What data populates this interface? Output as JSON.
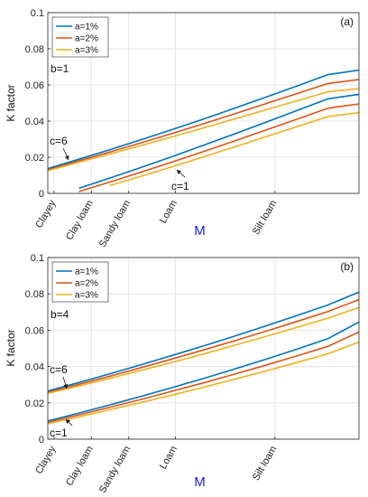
{
  "chart_data": [
    {
      "type": "line",
      "panel_label": "(a)",
      "ylabel": "K factor",
      "xlabel": "M",
      "ylim": [
        0,
        0.1
      ],
      "yticks": [
        "0",
        "0.02",
        "0.04",
        "0.06",
        "0.08",
        "0.1"
      ],
      "xlim": [
        0,
        1
      ],
      "x_categories": [
        {
          "label": "Clayey",
          "x": 0.02
        },
        {
          "label": "Clay loam",
          "x": 0.14
        },
        {
          "label": "Sandy loam",
          "x": 0.26
        },
        {
          "label": "Loam",
          "x": 0.41
        },
        {
          "label": "Silt loam",
          "x": 0.73
        }
      ],
      "grid": true,
      "legend": {
        "placement": "top-left",
        "entries": [
          "a=1%",
          "a=2%",
          "a=3%"
        ]
      },
      "annotations": [
        {
          "text": "b=1"
        },
        {
          "text": "c=6",
          "x": 0.02,
          "y": 0.013
        },
        {
          "text": "c=1",
          "x": 0.39,
          "y": 0.012
        }
      ],
      "colors": [
        "#0072BD",
        "#D95319",
        "#EDB120"
      ],
      "x": [
        0,
        0.1,
        0.2,
        0.3,
        0.4,
        0.5,
        0.6,
        0.7,
        0.8,
        0.9,
        1
      ],
      "series": [
        {
          "name": "a=1%",
          "group": "c=6",
          "values": [
            0.0137,
            0.0189,
            0.0242,
            0.0297,
            0.0353,
            0.0411,
            0.0471,
            0.0532,
            0.0594,
            0.0657,
            0.0682
          ]
        },
        {
          "name": "a=2%",
          "group": "c=6",
          "values": [
            0.0131,
            0.018,
            0.0229,
            0.028,
            0.0332,
            0.0385,
            0.044,
            0.0496,
            0.0552,
            0.0608,
            0.063
          ]
        },
        {
          "name": "a=3%",
          "group": "c=6",
          "values": [
            0.0126,
            0.0172,
            0.0218,
            0.0265,
            0.0313,
            0.0362,
            0.0412,
            0.0462,
            0.0512,
            0.0562,
            0.058
          ]
        },
        {
          "name": "a=1%",
          "group": "c=1",
          "values": [
            null,
            0.0028,
            0.0085,
            0.0144,
            0.0204,
            0.0266,
            0.0329,
            0.0393,
            0.0458,
            0.0523,
            0.0548
          ]
        },
        {
          "name": "a=2%",
          "group": "c=1",
          "values": [
            null,
            0.001,
            0.0063,
            0.0118,
            0.0174,
            0.0231,
            0.029,
            0.035,
            0.041,
            0.0471,
            0.0495
          ]
        },
        {
          "name": "a=3%",
          "group": "c=1",
          "values": [
            null,
            null,
            0.0044,
            0.0095,
            0.0148,
            0.0202,
            0.0257,
            0.0313,
            0.0369,
            0.0425,
            0.0447
          ]
        }
      ]
    },
    {
      "type": "line",
      "panel_label": "(b)",
      "ylabel": "K factor",
      "xlabel": "M",
      "ylim": [
        0,
        0.1
      ],
      "yticks": [
        "0",
        "0.02",
        "0.04",
        "0.06",
        "0.08",
        "0.1"
      ],
      "xlim": [
        0,
        1
      ],
      "x_categories": [
        {
          "label": "Clayey",
          "x": 0.02
        },
        {
          "label": "Clay loam",
          "x": 0.14
        },
        {
          "label": "Sandy loam",
          "x": 0.26
        },
        {
          "label": "Loam",
          "x": 0.41
        },
        {
          "label": "Silt loam",
          "x": 0.73
        }
      ],
      "grid": true,
      "legend": {
        "placement": "top-left",
        "entries": [
          "a=1%",
          "a=2%",
          "a=3%"
        ]
      },
      "annotations": [
        {
          "text": "b=4"
        },
        {
          "text": "c=6",
          "x": 0.02,
          "y": 0.026
        },
        {
          "text": "c=1",
          "x": 0.02,
          "y": 0.009
        }
      ],
      "colors": [
        "#0072BD",
        "#D95319",
        "#EDB120"
      ],
      "x": [
        0,
        0.1,
        0.2,
        0.3,
        0.4,
        0.5,
        0.6,
        0.7,
        0.8,
        0.9,
        1
      ],
      "series": [
        {
          "name": "a=1%",
          "group": "c=6",
          "values": [
            0.0265,
            0.0312,
            0.036,
            0.041,
            0.0461,
            0.0513,
            0.0567,
            0.0623,
            0.068,
            0.0739,
            0.081
          ]
        },
        {
          "name": "a=2%",
          "group": "c=6",
          "values": [
            0.0258,
            0.0302,
            0.0347,
            0.0394,
            0.0442,
            0.0491,
            0.0542,
            0.0594,
            0.0648,
            0.0703,
            0.0768
          ]
        },
        {
          "name": "a=3%",
          "group": "c=6",
          "values": [
            0.0252,
            0.0293,
            0.0335,
            0.0379,
            0.0423,
            0.0469,
            0.0517,
            0.0565,
            0.0615,
            0.0666,
            0.0725
          ]
        },
        {
          "name": "a=1%",
          "group": "c=1",
          "values": [
            0.01,
            0.0144,
            0.0189,
            0.0236,
            0.0284,
            0.0334,
            0.0386,
            0.044,
            0.0495,
            0.0553,
            0.0645
          ]
        },
        {
          "name": "a=2%",
          "group": "c=1",
          "values": [
            0.0093,
            0.0134,
            0.0176,
            0.0219,
            0.0264,
            0.031,
            0.0358,
            0.0407,
            0.0458,
            0.0511,
            0.059
          ]
        },
        {
          "name": "a=3%",
          "group": "c=1",
          "values": [
            0.0085,
            0.0123,
            0.0162,
            0.0202,
            0.0243,
            0.0286,
            0.033,
            0.0375,
            0.0422,
            0.047,
            0.0535
          ]
        }
      ]
    }
  ]
}
